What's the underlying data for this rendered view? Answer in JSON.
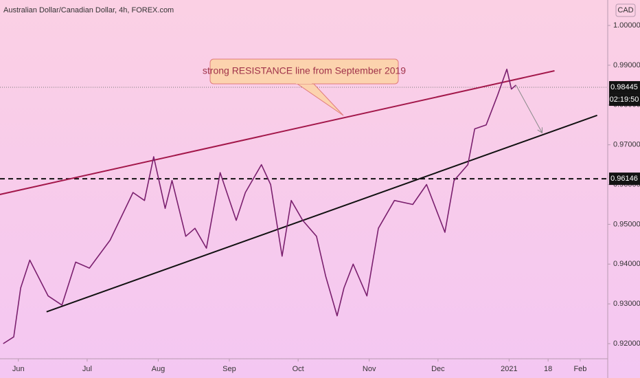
{
  "chart_data": {
    "type": "line",
    "title": "Australian Dollar/Canadian Dollar, 4h, FOREX.com",
    "y_axis_label": "CAD",
    "annotation": "strong RESISTANCE line from September 2019",
    "countdown": "02:19:50",
    "x": [
      -6.6,
      -2,
      1,
      5,
      13,
      19,
      25,
      31,
      40,
      50,
      55,
      59,
      64,
      67,
      73,
      77,
      82,
      88,
      95,
      99,
      106,
      110,
      115,
      119,
      124,
      130,
      134,
      139,
      142,
      146,
      152,
      157,
      164,
      172,
      178,
      182,
      186,
      190,
      196,
      199,
      204,
      209,
      213,
      215,
      217
    ],
    "series": [
      {
        "color": "#7a1f6e",
        "values": [
          0.92,
          0.9217,
          0.934,
          0.941,
          0.932,
          0.9297,
          0.9405,
          0.939,
          0.946,
          0.958,
          0.956,
          0.967,
          0.954,
          0.961,
          0.947,
          0.949,
          0.944,
          0.963,
          0.951,
          0.958,
          0.965,
          0.96,
          0.942,
          0.956,
          0.951,
          0.947,
          0.937,
          0.927,
          0.934,
          0.94,
          0.932,
          0.949,
          0.956,
          0.955,
          0.96,
          0.954,
          0.948,
          0.961,
          0.965,
          0.974,
          0.975,
          0.9825,
          0.989,
          0.984,
          0.985
        ]
      }
    ],
    "trendlines": [
      {
        "color": "#a3174a",
        "x": [
          -8.1,
          233.8
        ],
        "y": [
          0.9575,
          0.9886
        ]
      },
      {
        "color": "#111111",
        "x": [
          12.3,
          252.4
        ],
        "y": [
          0.928,
          0.9774
        ]
      }
    ],
    "arrow": {
      "color": "#8a8a8a",
      "x": [
        217,
        228.4
      ],
      "y": [
        0.985,
        0.973
      ]
    },
    "hlines": [
      {
        "value": 0.98445,
        "label": "0.98445",
        "style": "dotted"
      },
      {
        "value": 0.96146,
        "label": "0.96146",
        "style": "dashed"
      }
    ],
    "xlim": [
      -8,
      257
    ],
    "ylim": [
      0.9162,
      1.0064
    ],
    "xticks": [
      {
        "value": 0,
        "label": "Jun"
      },
      {
        "value": 30,
        "label": "Jul"
      },
      {
        "value": 61,
        "label": "Aug"
      },
      {
        "value": 92,
        "label": "Sep"
      },
      {
        "value": 122,
        "label": "Oct"
      },
      {
        "value": 153,
        "label": "Nov"
      },
      {
        "value": 183,
        "label": "Dec"
      },
      {
        "value": 214,
        "label": "2021"
      },
      {
        "value": 231,
        "label": "18"
      },
      {
        "value": 245,
        "label": "Feb"
      }
    ],
    "yticks": [
      {
        "value": 0.92,
        "label": "0.92000"
      },
      {
        "value": 0.93,
        "label": "0.93000"
      },
      {
        "value": 0.94,
        "label": "0.94000"
      },
      {
        "value": 0.95,
        "label": "0.95000"
      },
      {
        "value": 0.96,
        "label": "0.96000"
      },
      {
        "value": 0.97,
        "label": "0.97000"
      },
      {
        "value": 0.98,
        "label": "0.98000"
      },
      {
        "value": 0.99,
        "label": "0.99000"
      },
      {
        "value": 1.0,
        "label": "1.00000"
      }
    ]
  }
}
